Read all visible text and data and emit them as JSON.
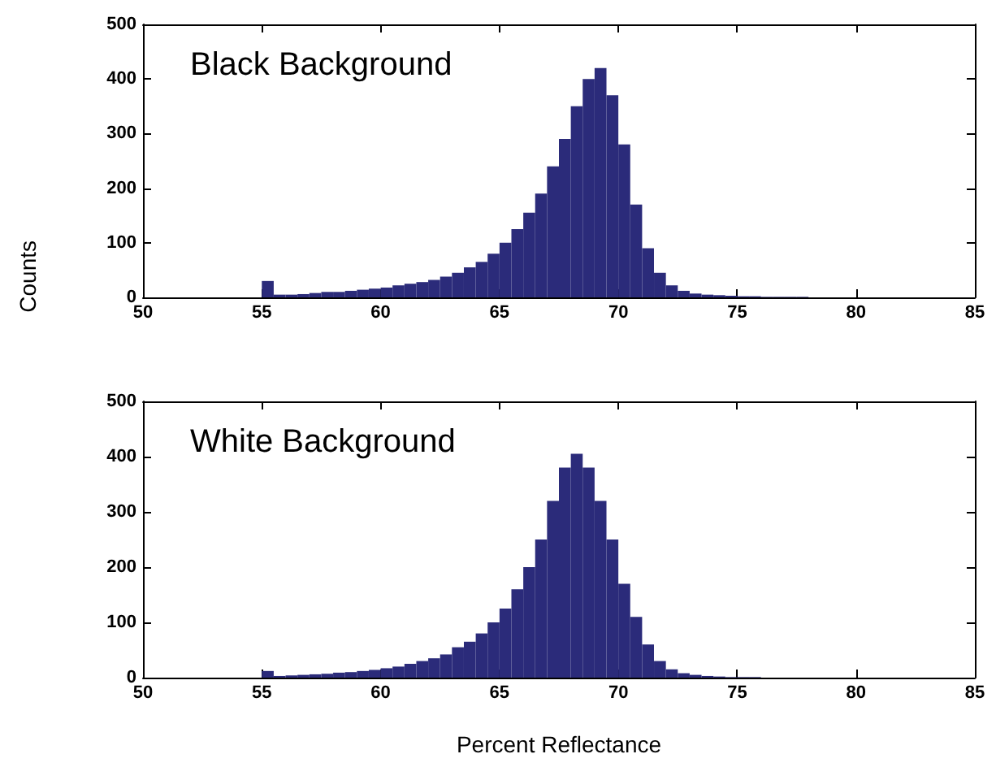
{
  "chart_data": [
    {
      "type": "histogram",
      "title": "Black Background",
      "ylabel": "Counts",
      "color": "#2b2b7a",
      "bins": [
        55,
        55.5,
        56,
        56.5,
        57,
        57.5,
        58,
        58.5,
        59,
        59.5,
        60,
        60.5,
        61,
        61.5,
        62,
        62.5,
        63,
        63.5,
        64,
        64.5,
        65,
        65.5,
        66,
        66.5,
        67,
        67.5,
        68,
        68.5,
        69,
        69.5,
        70,
        70.5,
        71,
        71.5,
        72,
        72.5,
        73,
        73.5,
        74,
        74.5,
        75,
        75.5,
        76,
        76.5,
        77,
        77.5,
        78
      ],
      "values": [
        30,
        5,
        5,
        6,
        8,
        10,
        10,
        12,
        14,
        16,
        18,
        22,
        25,
        28,
        32,
        38,
        45,
        55,
        65,
        80,
        100,
        125,
        155,
        190,
        240,
        290,
        350,
        400,
        420,
        370,
        280,
        170,
        90,
        45,
        22,
        12,
        7,
        5,
        4,
        3,
        2,
        2,
        1,
        1,
        1,
        1
      ],
      "xlim": [
        50,
        85
      ],
      "xticks": [
        50,
        55,
        60,
        65,
        70,
        75,
        80,
        85
      ],
      "ylim": [
        0,
        500
      ],
      "yticks": [
        0,
        100,
        200,
        300,
        400,
        500
      ],
      "grid": false
    },
    {
      "type": "histogram",
      "title": "White Background",
      "xlabel": "Percent Reflectance",
      "color": "#2b2b7a",
      "bins": [
        55,
        55.5,
        56,
        56.5,
        57,
        57.5,
        58,
        58.5,
        59,
        59.5,
        60,
        60.5,
        61,
        61.5,
        62,
        62.5,
        63,
        63.5,
        64,
        64.5,
        65,
        65.5,
        66,
        66.5,
        67,
        67.5,
        68,
        68.5,
        69,
        69.5,
        70,
        70.5,
        71,
        71.5,
        72,
        72.5,
        73,
        73.5,
        74,
        74.5,
        75,
        75.5,
        76
      ],
      "values": [
        12,
        3,
        4,
        5,
        6,
        7,
        9,
        10,
        12,
        14,
        17,
        20,
        25,
        30,
        35,
        42,
        55,
        65,
        80,
        100,
        125,
        160,
        200,
        250,
        320,
        380,
        405,
        380,
        320,
        250,
        170,
        110,
        60,
        30,
        15,
        8,
        5,
        3,
        2,
        1,
        1,
        1
      ],
      "xlim": [
        50,
        85
      ],
      "xticks": [
        50,
        55,
        60,
        65,
        70,
        75,
        80,
        85
      ],
      "ylim": [
        0,
        500
      ],
      "yticks": [
        0,
        100,
        200,
        300,
        400,
        500
      ],
      "grid": false
    }
  ]
}
